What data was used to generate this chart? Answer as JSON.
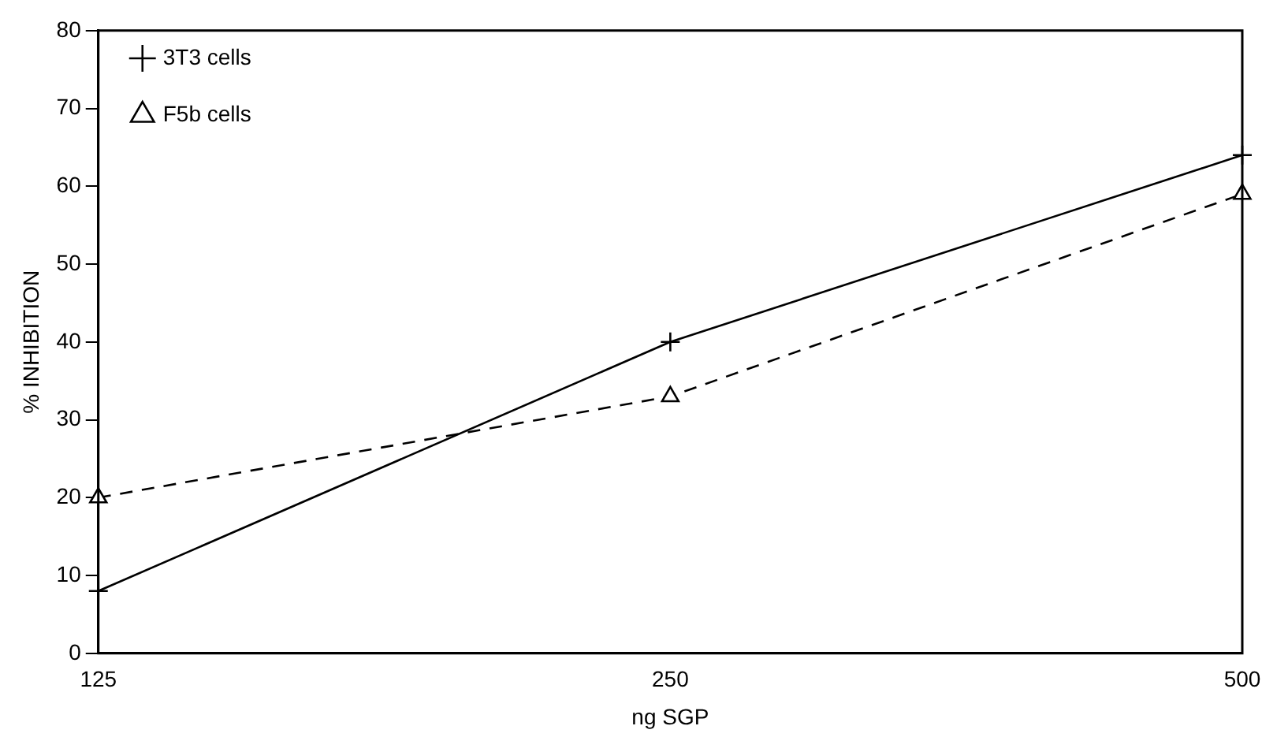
{
  "chart_data": {
    "type": "line",
    "xlabel": "ng SGP",
    "ylabel": "% INHIBITION",
    "categories": [
      "125",
      "250",
      "500"
    ],
    "series": [
      {
        "name": "3T3 cells",
        "color": "#000000",
        "values": [
          8,
          40,
          64
        ],
        "marker": "cross",
        "line_style": "solid"
      },
      {
        "name": "F5b cells",
        "color": "#000000",
        "values": [
          20,
          33,
          59
        ],
        "marker": "triangle",
        "line_style": "dashed"
      }
    ],
    "ylim": [
      0,
      80
    ],
    "yticks": [
      0,
      10,
      20,
      30,
      40,
      50,
      60,
      70,
      80
    ],
    "grid": false,
    "legend": "top left"
  }
}
